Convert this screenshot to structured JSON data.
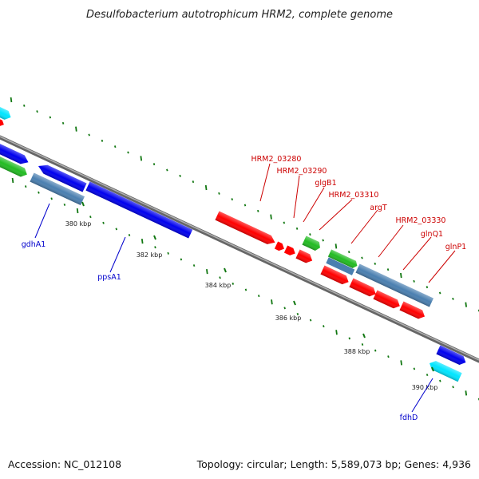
{
  "title": "Desulfobacterium autotrophicum HRM2, complete genome",
  "accession": "Accession: NC_012108",
  "topology": "Topology: circular; Length: 5,589,073 bp; Genes: 4,936",
  "ticks": [
    "380 kbp",
    "382 kbp",
    "384 kbp",
    "386 kbp",
    "388 kbp",
    "390 kbp"
  ],
  "labels": {
    "HRM2_03280": "HRM2_03280",
    "HRM2_03290": "HRM2_03290",
    "glgB1": "glgB1",
    "HRM2_03310": "HRM2_03310",
    "argT": "argT",
    "HRM2_03330": "HRM2_03330",
    "glnQ1": "glnQ1",
    "glnP1": "glnP1",
    "gdhA1": "gdhA1",
    "ppsA1": "ppsA1",
    "fdhD": "fdhD"
  },
  "colors": {
    "label_red": "#cc0000",
    "label_blue": "#0000cc",
    "gene_red": "#ff0000",
    "gene_blue": "#0000ee",
    "gene_steel": "#4a7fb0",
    "gene_green": "#22bb22",
    "gene_cyan": "#00e5ff",
    "backbone": "#888888",
    "dots": "#117711"
  }
}
